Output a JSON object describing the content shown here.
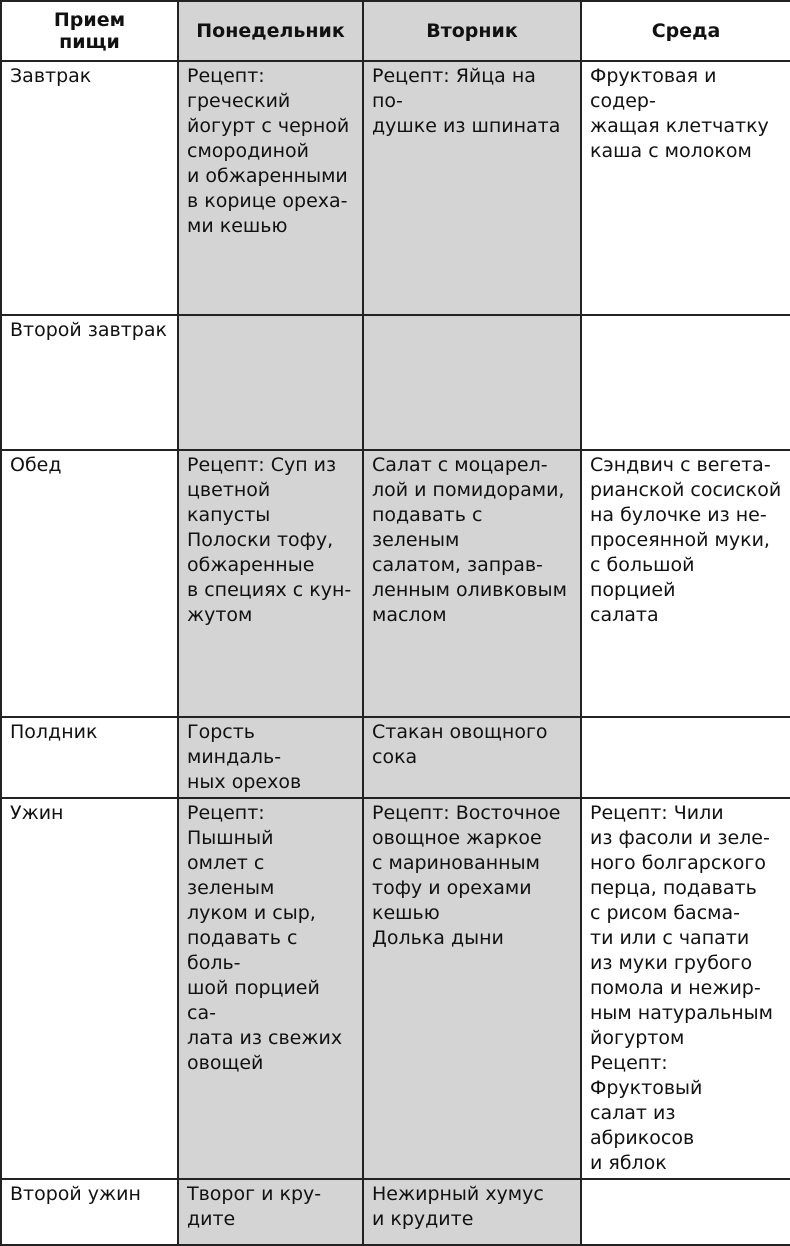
{
  "headers": [
    "Прием\nпищи",
    "Понедельник",
    "Вторник",
    "Среда"
  ],
  "rows": [
    {
      "meal": "Завтрак",
      "mon": "Рецепт:\nгреческий\nйогурт с черной\nсмородиной\nи обжаренными\nв корице ореха-\nми кешью",
      "tue": "Рецепт: Яйца на по-\nдушке из шпината",
      "wed": "Фруктовая и содер-\nжащая клетчатку\nкаша с молоком"
    },
    {
      "meal": "Второй завтрак",
      "mon": "",
      "tue": "",
      "wed": ""
    },
    {
      "meal": "Обед",
      "mon": "Рецепт: Суп из\nцветной капусты\nПолоски тофу,\nобжаренные\nв специях с кун-\nжутом",
      "tue": "Салат с моцарел-\nлой и помидорами,\nподавать с зеленым\nсалатом, заправ-\nленным оливковым\nмаслом",
      "wed": "Сэндвич с вегета-\nрианской сосиской\nна булочке из не-\nпросеянной муки,\nс большой порцией\nсалата"
    },
    {
      "meal": "Полдник",
      "mon": "Горсть миндаль-\nных орехов",
      "tue": "Стакан овощного\nсока",
      "wed": ""
    },
    {
      "meal": "Ужин",
      "mon": "Рецепт: Пышный\nомлет с зеленым\nлуком и сыр,\nподавать с боль-\nшой порцией са-\nлата из свежих\nовощей",
      "tue": "Рецепт: Восточное\nовощное жаркое\nс маринованным\nтофу и орехами\nкешью\nДолька дыни",
      "wed": "Рецепт: Чили\nиз фасоли и зеле-\nного болгарского\nперца, подавать\nс рисом басма-\nти или с чапати\nиз муки грубого\nпомола и нежир-\nным натуральным\nйогуртом\nРецепт: Фруктовый\nсалат из абрикосов\nи яблок"
    },
    {
      "meal": "Второй ужин",
      "mon": "Творог и кру-\nдите",
      "tue": "Нежирный хумус\nи крудите",
      "wed": ""
    }
  ]
}
